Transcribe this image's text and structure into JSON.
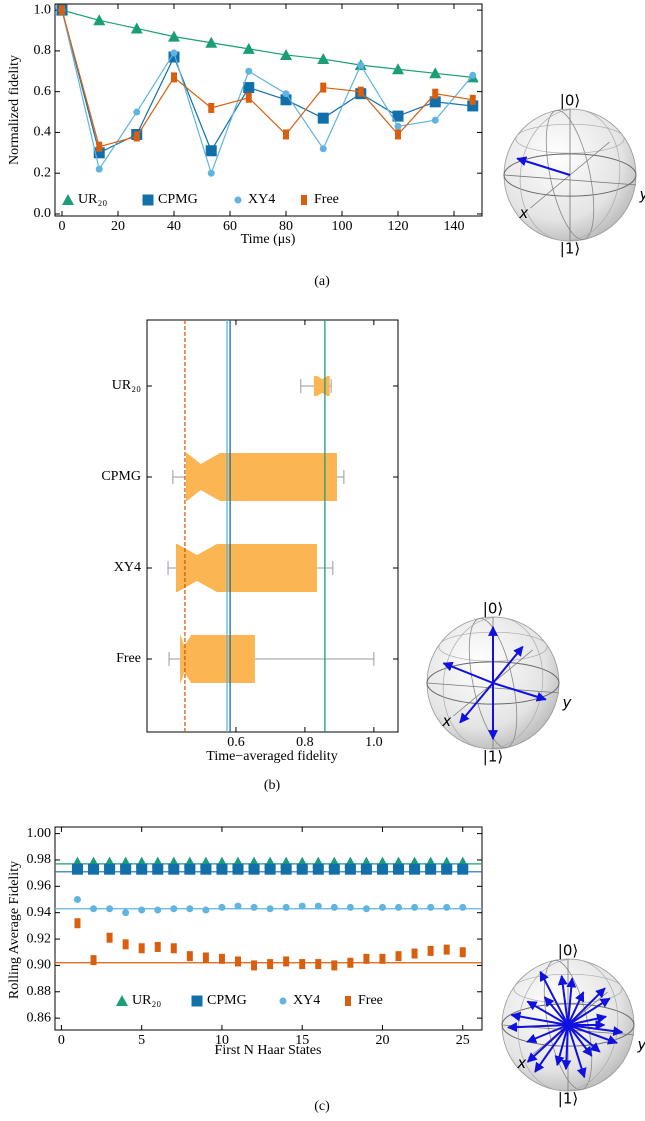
{
  "chart_data": [
    {
      "type": "line",
      "panel_label": "(a)",
      "x_label": "Time (μs)",
      "y_label": "Normalized fidelity",
      "x": [
        0,
        13.3,
        26.7,
        40,
        53.3,
        66.7,
        80,
        93.3,
        106.7,
        120,
        133.3,
        146.7
      ],
      "xlim": [
        -2.5,
        150
      ],
      "ylim": [
        -0.01,
        1.03
      ],
      "xticks": [
        0,
        20,
        40,
        60,
        80,
        100,
        120,
        140
      ],
      "yticks": [
        {
          "value": 0,
          "label": "0.0"
        },
        0.2,
        0.4,
        0.6,
        0.8,
        {
          "value": 1,
          "label": "1.0"
        }
      ],
      "series": [
        {
          "name": "UR₂₀",
          "color": "#1b9e77",
          "marker": "triangle",
          "values": [
            1.0,
            0.95,
            0.91,
            0.87,
            0.84,
            0.81,
            0.78,
            0.76,
            0.73,
            0.71,
            0.69,
            0.67
          ]
        },
        {
          "name": "CPMG",
          "color": "#1170aa",
          "marker": "square",
          "values": [
            1.0,
            0.3,
            0.39,
            0.77,
            0.31,
            0.62,
            0.56,
            0.47,
            0.59,
            0.48,
            0.55,
            0.53
          ]
        },
        {
          "name": "XY4",
          "color": "#5fb4e0",
          "marker": "circle",
          "values": [
            1.0,
            0.22,
            0.5,
            0.79,
            0.2,
            0.7,
            0.59,
            0.32,
            0.73,
            0.43,
            0.46,
            0.68
          ]
        },
        {
          "name": "Free",
          "color": "#d95f0e",
          "marker": "bar",
          "values": [
            1.0,
            0.33,
            0.38,
            0.67,
            0.52,
            0.57,
            0.39,
            0.62,
            0.6,
            0.39,
            0.59,
            0.56
          ]
        }
      ],
      "bloch_labels": {
        "zero": "|0⟩",
        "one": "|1⟩",
        "x": "x",
        "y": "y"
      }
    },
    {
      "type": "box",
      "panel_label": "(b)",
      "x_label": "Time−averaged fidelity",
      "xlim": [
        0.342,
        1.07
      ],
      "xticks": [
        0.6,
        0.8,
        {
          "value": 1,
          "label": "1.0"
        }
      ],
      "box_color": "#fbb552",
      "whisker_color": "#999999",
      "categories": [
        "UR₂₀",
        "CPMG",
        "XY4",
        "Free"
      ],
      "category_colors": [
        "#1b9e77",
        "#1170aa",
        "#5fb4e0",
        "#d95f0e"
      ],
      "boxes": [
        {
          "whislo": 0.788,
          "q1": 0.826,
          "med": 0.85,
          "q3": 0.872,
          "whishi": 0.876,
          "notch": [
            0.835,
            0.865
          ]
        },
        {
          "whislo": 0.417,
          "q1": 0.455,
          "med": 0.498,
          "q3": 0.893,
          "whishi": 0.913,
          "notch": [
            0.458,
            0.554
          ]
        },
        {
          "whislo": 0.403,
          "q1": 0.426,
          "med": 0.487,
          "q3": 0.835,
          "whishi": 0.881,
          "notch": [
            0.43,
            0.545
          ]
        },
        {
          "whislo": 0.406,
          "q1": 0.438,
          "med": 0.45,
          "q3": 0.655,
          "whishi": 1.0,
          "notch": [
            0.44,
            0.47
          ]
        }
      ],
      "mean_lines": [
        {
          "value": 0.858,
          "color": "#1b9e77",
          "dashed": false
        },
        {
          "value": 0.583,
          "color": "#1170aa",
          "dashed": false
        },
        {
          "value": 0.574,
          "color": "#5fb4e0",
          "dashed": false
        },
        {
          "value": 0.452,
          "color": "#d95f0e",
          "dashed": true
        }
      ],
      "bloch_labels": {
        "zero": "|0⟩",
        "one": "|1⟩",
        "x": "x",
        "y": "y"
      }
    },
    {
      "type": "scatter",
      "panel_label": "(c)",
      "x_label": "First N Haar States",
      "y_label": "Rolling Average Fidelity",
      "x": [
        1,
        2,
        3,
        4,
        5,
        6,
        7,
        8,
        9,
        10,
        11,
        12,
        13,
        14,
        15,
        16,
        17,
        18,
        19,
        20,
        21,
        22,
        23,
        24,
        25
      ],
      "xlim": [
        -0.4,
        26.2
      ],
      "ylim": [
        0.851,
        1.005
      ],
      "xticks": [
        0,
        5,
        10,
        15,
        20,
        25
      ],
      "yticks": [
        0.86,
        0.88,
        {
          "value": 0.9,
          "label": "0.90"
        },
        0.92,
        0.94,
        0.96,
        0.98,
        {
          "value": 1,
          "label": "1.00"
        }
      ],
      "series": [
        {
          "name": "UR₂₀",
          "color": "#1b9e77",
          "marker": "triangle",
          "reference": 0.977,
          "values": [
            0.978,
            0.978,
            0.978,
            0.978,
            0.978,
            0.978,
            0.978,
            0.978,
            0.978,
            0.978,
            0.978,
            0.978,
            0.978,
            0.978,
            0.978,
            0.978,
            0.978,
            0.978,
            0.978,
            0.978,
            0.978,
            0.978,
            0.978,
            0.978,
            0.978
          ]
        },
        {
          "name": "CPMG",
          "color": "#1170aa",
          "marker": "square",
          "reference": 0.971,
          "values": [
            0.973,
            0.973,
            0.973,
            0.973,
            0.973,
            0.973,
            0.973,
            0.973,
            0.973,
            0.973,
            0.973,
            0.973,
            0.973,
            0.973,
            0.973,
            0.973,
            0.973,
            0.973,
            0.973,
            0.973,
            0.973,
            0.973,
            0.973,
            0.973,
            0.973
          ]
        },
        {
          "name": "XY4",
          "color": "#5fb4e0",
          "marker": "circle",
          "reference": 0.943,
          "values": [
            0.95,
            0.943,
            0.943,
            0.94,
            0.942,
            0.942,
            0.943,
            0.943,
            0.942,
            0.944,
            0.945,
            0.944,
            0.943,
            0.944,
            0.945,
            0.945,
            0.944,
            0.944,
            0.943,
            0.944,
            0.944,
            0.944,
            0.944,
            0.944,
            0.944
          ]
        },
        {
          "name": "Free",
          "color": "#d95f0e",
          "marker": "bar",
          "reference": 0.902,
          "values": [
            0.932,
            0.904,
            0.921,
            0.916,
            0.913,
            0.914,
            0.913,
            0.907,
            0.906,
            0.905,
            0.903,
            0.9,
            0.901,
            0.903,
            0.901,
            0.901,
            0.9,
            0.902,
            0.905,
            0.905,
            0.907,
            0.909,
            0.911,
            0.912,
            0.91
          ]
        }
      ],
      "bloch_labels": {
        "zero": "|0⟩",
        "one": "|1⟩",
        "x": "x",
        "y": "y"
      }
    }
  ]
}
